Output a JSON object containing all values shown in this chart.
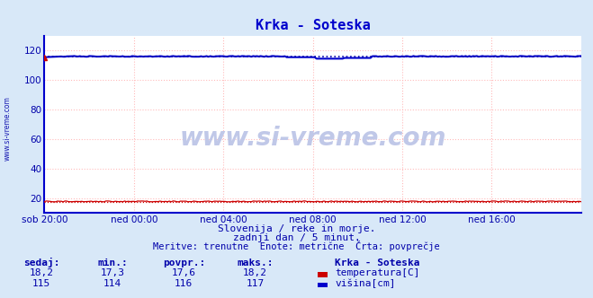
{
  "title": "Krka - Soteska",
  "background_color": "#d8e8f8",
  "plot_background": "#ffffff",
  "grid_color_red": "#ffbbbb",
  "grid_color_blue": "#bbbbdd",
  "ylabel_left": "",
  "xlabel": "",
  "xlim": [
    0,
    288
  ],
  "ylim": [
    10,
    130
  ],
  "yticks": [
    20,
    40,
    60,
    80,
    100,
    120
  ],
  "xtick_labels": [
    "sob 20:00",
    "ned 00:00",
    "ned 04:00",
    "ned 08:00",
    "ned 12:00",
    "ned 16:00"
  ],
  "xtick_positions": [
    0,
    48,
    96,
    144,
    192,
    240
  ],
  "temp_color": "#cc0000",
  "visina_color": "#0000cc",
  "avg_color_visina": "#0000aa",
  "watermark": "www.si-vreme.com",
  "watermark_color": "#c0c8e8",
  "sub1": "Slovenija / reke in morje.",
  "sub2": "zadnji dan / 5 minut.",
  "sub3": "Meritve: trenutne  Enote: metrične  Črta: povprečje",
  "legend_title": "Krka - Soteska",
  "legend_items": [
    "temperatura[C]",
    "višina[cm]"
  ],
  "legend_colors": [
    "#cc0000",
    "#0000cc"
  ],
  "table_headers": [
    "sedaj:",
    "min.:",
    "povpr.:",
    "maks.:"
  ],
  "table_temp": [
    "18,2",
    "17,3",
    "17,6",
    "18,2"
  ],
  "table_visina": [
    "115",
    "114",
    "116",
    "117"
  ],
  "temp_avg": 17.6,
  "visina_avg": 116,
  "title_color": "#0000cc",
  "axis_label_color": "#0000aa",
  "spine_color": "#0000cc",
  "sub_text_color": "#0000aa",
  "left_watermark_color": "#0000aa"
}
